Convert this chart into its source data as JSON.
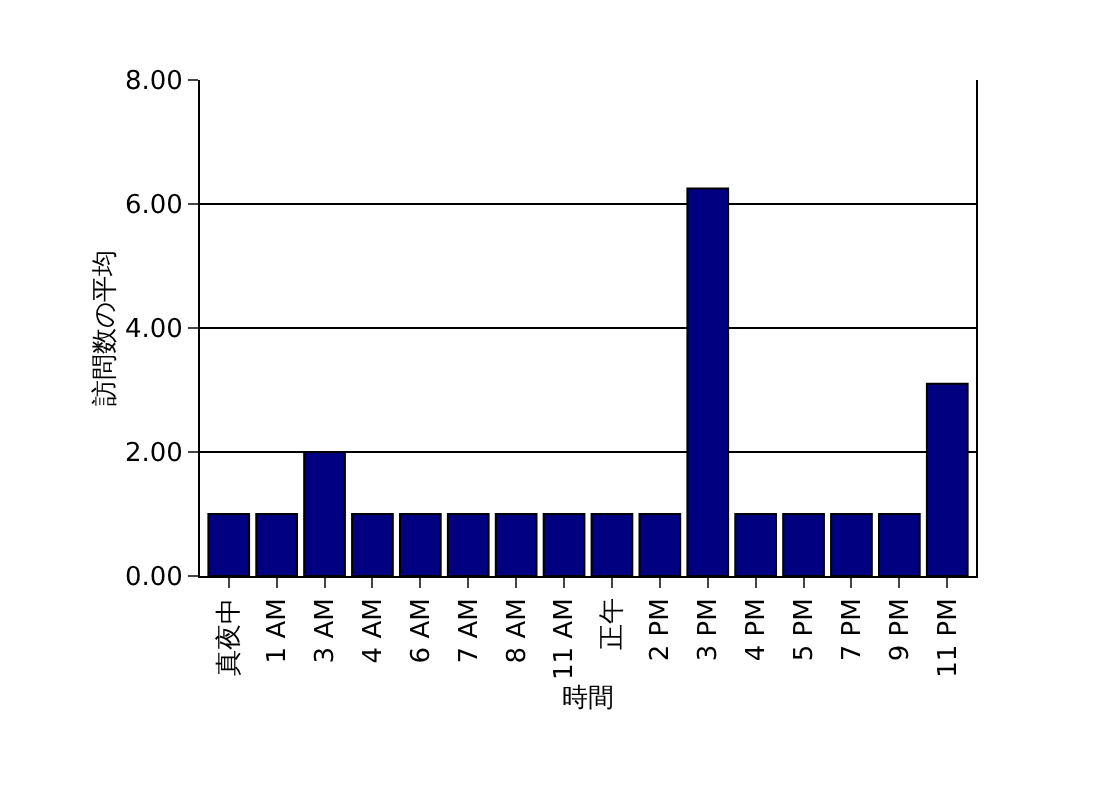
{
  "chart_data": {
    "type": "bar",
    "xlabel": "時間",
    "ylabel": "訪問数の平均",
    "categories": [
      "真夜中",
      "1 AM",
      "3 AM",
      "4 AM",
      "6 AM",
      "7 AM",
      "8 AM",
      "11 AM",
      "正午",
      "2 PM",
      "3 PM",
      "4 PM",
      "5 PM",
      "7 PM",
      "9 PM",
      "11 PM"
    ],
    "values": [
      1,
      1,
      2,
      1,
      1,
      1,
      1,
      1,
      1,
      1,
      6.25,
      1,
      1,
      1,
      1,
      3.1
    ],
    "color": "#000080",
    "ylim": [
      0,
      8
    ],
    "yticks": [
      {
        "value": 0,
        "label": "0.00"
      },
      {
        "value": 2,
        "label": "2.00"
      },
      {
        "value": 4,
        "label": "4.00"
      },
      {
        "value": 6,
        "label": "6.00"
      },
      {
        "value": 8,
        "label": "8.00"
      }
    ],
    "grid": "y"
  }
}
